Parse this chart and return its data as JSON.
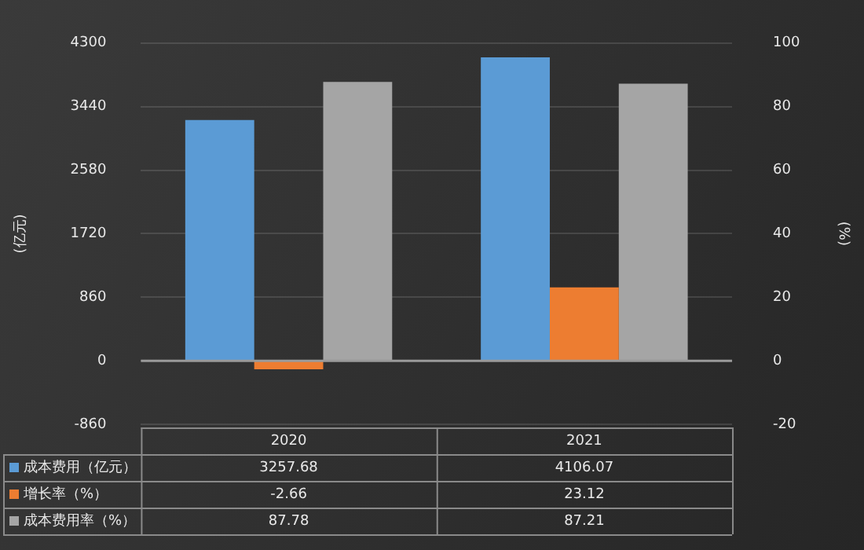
{
  "chart_data": {
    "type": "bar",
    "categories": [
      "2020",
      "2021"
    ],
    "ylabel": "(亿元)",
    "y2label": "(%)",
    "series": [
      {
        "name": "成本费用（亿元）",
        "color": "#5b9bd5",
        "values": [
          3257.68,
          4106.07
        ]
      },
      {
        "name": "增长率（%）",
        "color": "#ed7d31",
        "values": [
          -2.66,
          23.12
        ],
        "axis": "y2"
      },
      {
        "name": "成本费用率（%）",
        "color": "#a5a5a5",
        "values": [
          87.78,
          87.21
        ],
        "axis": "y2"
      }
    ],
    "ylim": [
      -860,
      4300
    ],
    "yticks": [
      -860,
      0,
      860,
      1720,
      2580,
      3440,
      4300
    ],
    "y2lim": [
      -20,
      100
    ],
    "y2ticks": [
      -20,
      0,
      20,
      40,
      60,
      80,
      100
    ],
    "grid": "y",
    "data_labels": true,
    "legend": "bottom left"
  }
}
